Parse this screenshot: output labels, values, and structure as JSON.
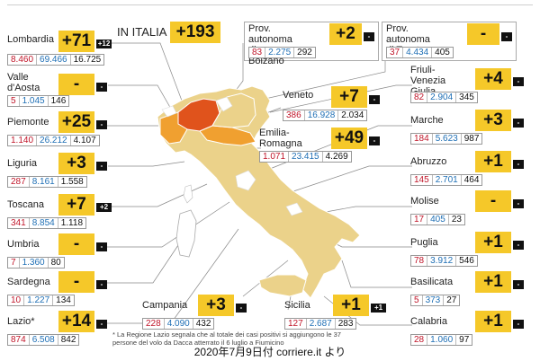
{
  "italia": {
    "label": "IN ITALIA",
    "delta": "+193"
  },
  "regions": [
    {
      "key": "lombardia",
      "name": "Lombardia",
      "delta": "+71",
      "tag": "+12",
      "a": "8.460",
      "b": "69.466",
      "c": "16.725"
    },
    {
      "key": "valle-d-aosta",
      "name": "Valle\nd'Aosta",
      "delta": "-",
      "tag": "-",
      "a": "5",
      "b": "1.045",
      "c": "146"
    },
    {
      "key": "piemonte",
      "name": "Piemonte",
      "delta": "+25",
      "tag": "-",
      "a": "1.140",
      "b": "26.212",
      "c": "4.107"
    },
    {
      "key": "liguria",
      "name": "Liguria",
      "delta": "+3",
      "tag": "-",
      "a": "287",
      "b": "8.161",
      "c": "1.558"
    },
    {
      "key": "toscana",
      "name": "Toscana",
      "delta": "+7",
      "tag": "+2",
      "a": "341",
      "b": "8.854",
      "c": "1.118"
    },
    {
      "key": "umbria",
      "name": "Umbria",
      "delta": "-",
      "tag": "-",
      "a": "7",
      "b": "1.360",
      "c": "80"
    },
    {
      "key": "sardegna",
      "name": "Sardegna",
      "delta": "-",
      "tag": "-",
      "a": "10",
      "b": "1.227",
      "c": "134"
    },
    {
      "key": "lazio",
      "name": "Lazio*",
      "delta": "+14",
      "tag": "-",
      "a": "874",
      "b": "6.508",
      "c": "842"
    },
    {
      "key": "bolzano",
      "name": "Prov. autonoma\ndi Bolzano",
      "delta": "+2",
      "tag": "-",
      "a": "83",
      "b": "2.275",
      "c": "292"
    },
    {
      "key": "trento",
      "name": "Prov. autonoma\ndi Trento",
      "delta": "-",
      "tag": "-",
      "a": "37",
      "b": "4.434",
      "c": "405"
    },
    {
      "key": "veneto",
      "name": "Veneto",
      "delta": "+7",
      "tag": "-",
      "a": "386",
      "b": "16.928",
      "c": "2.034"
    },
    {
      "key": "emilia-romagna",
      "name": "Emilia-\nRomagna",
      "delta": "+49",
      "tag": "-",
      "a": "1.071",
      "b": "23.415",
      "c": "4.269"
    },
    {
      "key": "friuli",
      "name": "Friuli-\nVenezia\nGiulia",
      "delta": "+4",
      "tag": "-",
      "a": "82",
      "b": "2.904",
      "c": "345"
    },
    {
      "key": "marche",
      "name": "Marche",
      "delta": "+3",
      "tag": "-",
      "a": "184",
      "b": "5.623",
      "c": "987"
    },
    {
      "key": "abruzzo",
      "name": "Abruzzo",
      "delta": "+1",
      "tag": "-",
      "a": "145",
      "b": "2.701",
      "c": "464"
    },
    {
      "key": "molise",
      "name": "Molise",
      "delta": "-",
      "tag": "-",
      "a": "17",
      "b": "405",
      "c": "23"
    },
    {
      "key": "puglia",
      "name": "Puglia",
      "delta": "+1",
      "tag": "-",
      "a": "78",
      "b": "3.912",
      "c": "546"
    },
    {
      "key": "basilicata",
      "name": "Basilicata",
      "delta": "+1",
      "tag": "-",
      "a": "5",
      "b": "373",
      "c": "27"
    },
    {
      "key": "calabria",
      "name": "Calabria",
      "delta": "+1",
      "tag": "-",
      "a": "28",
      "b": "1.060",
      "c": "97"
    },
    {
      "key": "campania",
      "name": "Campania",
      "delta": "+3",
      "tag": "-",
      "a": "228",
      "b": "4.090",
      "c": "432"
    },
    {
      "key": "sicilia",
      "name": "Sicilia",
      "delta": "+1",
      "tag": "+1",
      "a": "127",
      "b": "2.687",
      "c": "283"
    }
  ],
  "footnote": "* La Regione Lazio segnala che al totale dei casi positivi si aggiungono le 37 persone del volo da Dacca atterrato il 6 luglio a Fiumicino",
  "caption": "2020年7月9日付  corriere.it より",
  "colors": {
    "accent": "#f5c829",
    "highlight_region": "#e0531c",
    "mid_region": "#f0a030",
    "land": "#ebd28a",
    "text_red": "#c0162a",
    "text_blue": "#1f6fb5"
  }
}
